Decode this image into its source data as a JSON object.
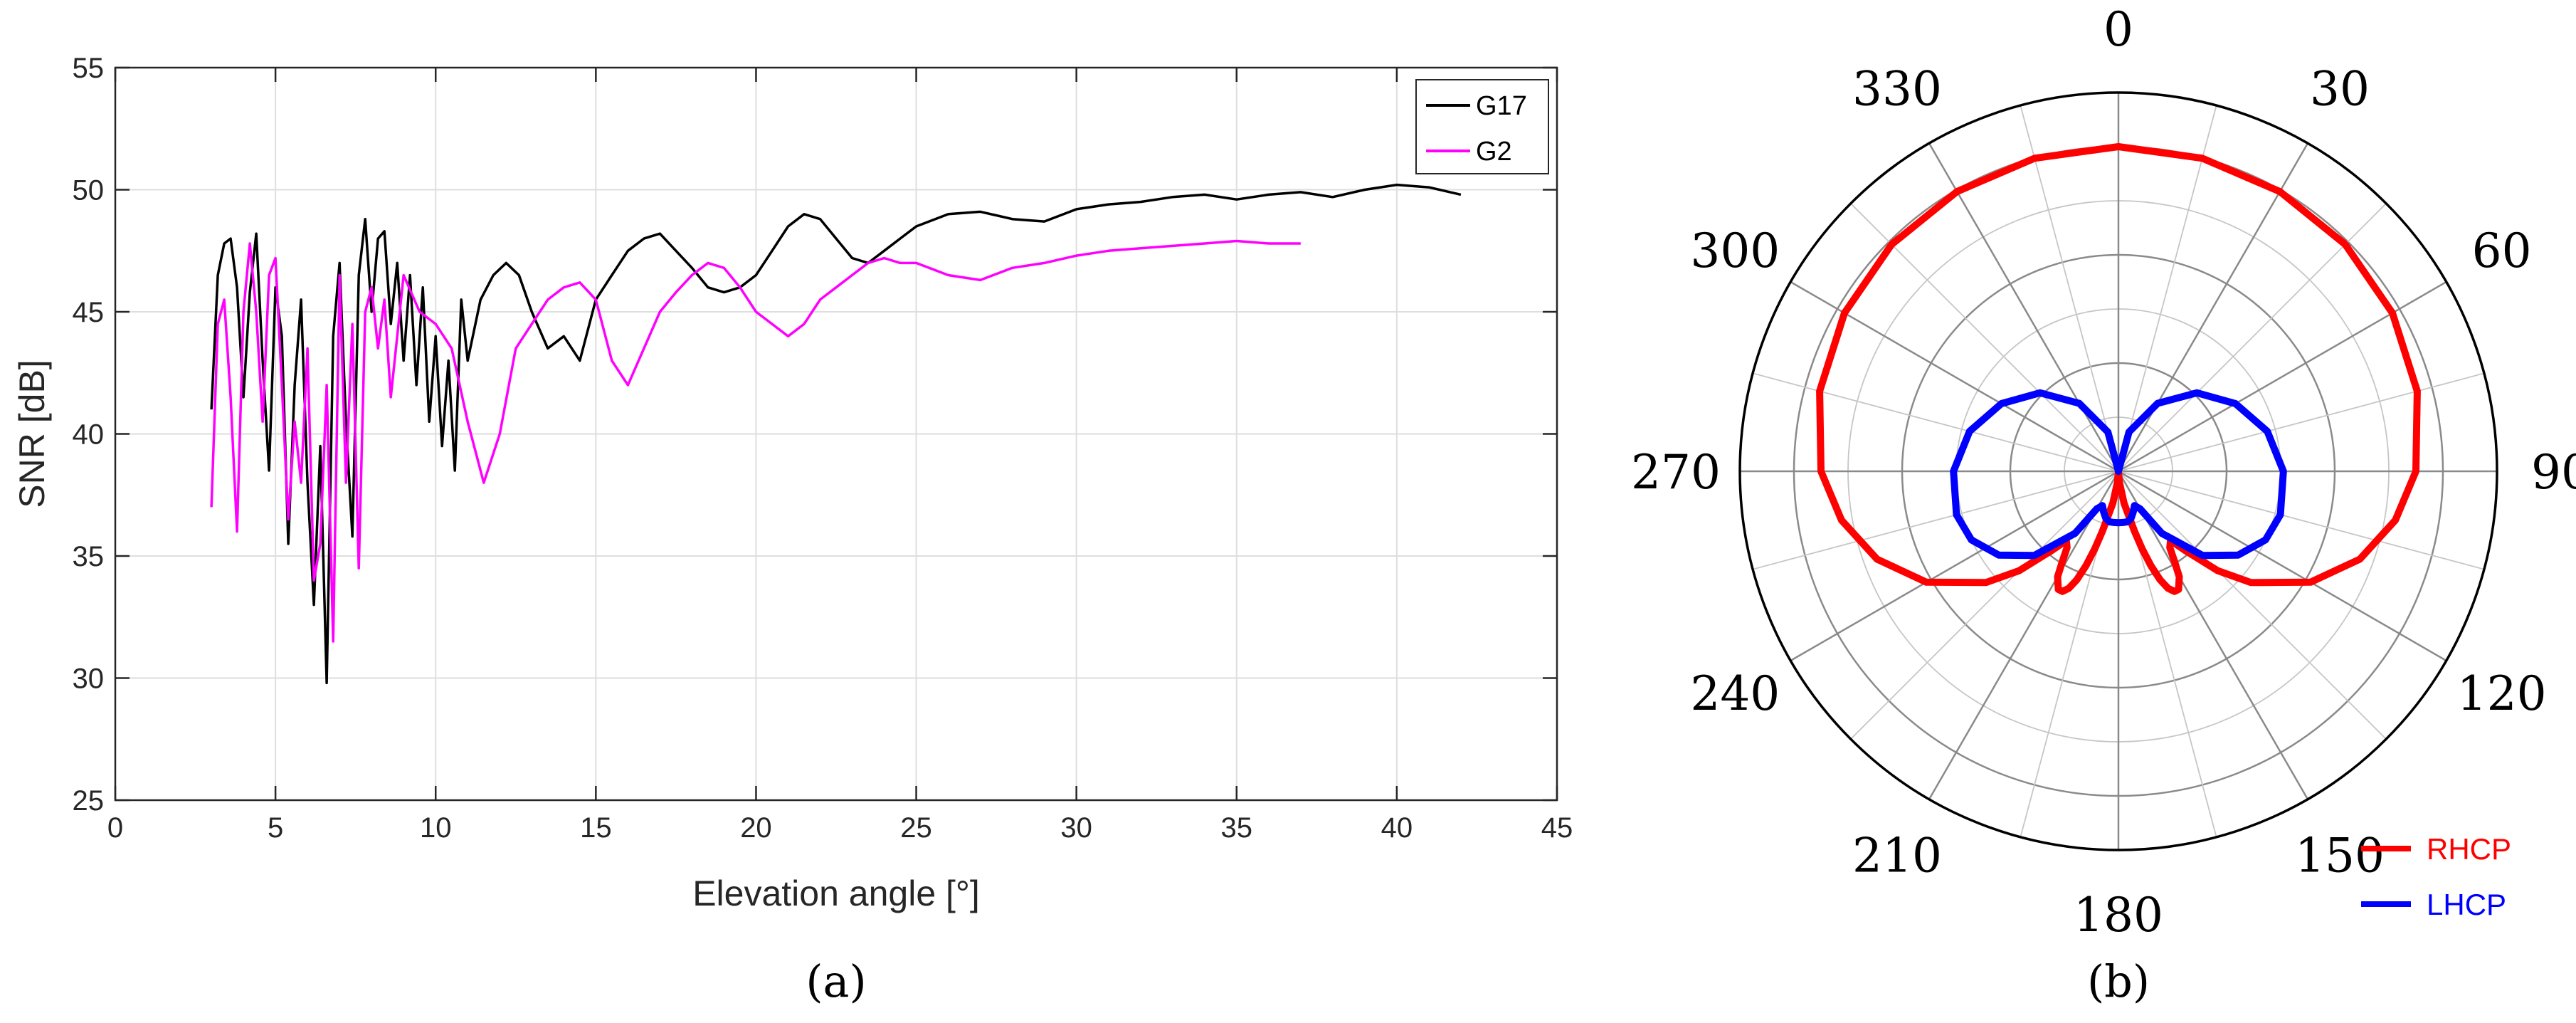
{
  "chart_data": [
    {
      "type": "line",
      "caption": "(a)",
      "xlabel": "Elevation angle [°]",
      "ylabel": "SNR [dB]",
      "xlim": [
        0,
        45
      ],
      "ylim": [
        25,
        55
      ],
      "xticks": [
        0,
        5,
        10,
        15,
        20,
        25,
        30,
        35,
        40,
        45
      ],
      "yticks": [
        25,
        30,
        35,
        40,
        45,
        50,
        55
      ],
      "grid": true,
      "legend_position": "top-right",
      "series": [
        {
          "name": "G17",
          "color": "#000000",
          "x": [
            3.0,
            3.2,
            3.4,
            3.6,
            3.8,
            4.0,
            4.2,
            4.4,
            4.6,
            4.8,
            5.0,
            5.2,
            5.4,
            5.6,
            5.8,
            6.0,
            6.2,
            6.4,
            6.6,
            6.8,
            7.0,
            7.2,
            7.4,
            7.6,
            7.8,
            8.0,
            8.2,
            8.4,
            8.6,
            8.8,
            9.0,
            9.2,
            9.4,
            9.6,
            9.8,
            10.0,
            10.2,
            10.4,
            10.6,
            10.8,
            11.0,
            11.4,
            11.8,
            12.2,
            12.6,
            13.0,
            13.5,
            14.0,
            14.5,
            15.0,
            15.5,
            16.0,
            16.5,
            17.0,
            17.5,
            18.0,
            18.5,
            19.0,
            19.5,
            20.0,
            20.5,
            21.0,
            21.5,
            22.0,
            22.5,
            23.0,
            23.5,
            24.0,
            24.5,
            25.0,
            26.0,
            27.0,
            28.0,
            29.0,
            30.0,
            31.0,
            32.0,
            33.0,
            34.0,
            35.0,
            36.0,
            37.0,
            38.0,
            39.0,
            40.0,
            41.0,
            42.0
          ],
          "y": [
            41.0,
            46.5,
            47.8,
            48.0,
            46.0,
            41.5,
            45.8,
            48.2,
            43.0,
            38.5,
            46.0,
            44.0,
            35.5,
            42.0,
            45.5,
            38.0,
            33.0,
            39.5,
            29.8,
            44.0,
            47.0,
            40.5,
            35.8,
            46.5,
            48.8,
            45.0,
            48.0,
            48.3,
            44.5,
            47.0,
            43.0,
            46.5,
            42.0,
            46.0,
            40.5,
            44.0,
            39.5,
            43.0,
            38.5,
            45.5,
            43.0,
            45.5,
            46.5,
            47.0,
            46.5,
            45.0,
            43.5,
            44.0,
            43.0,
            45.5,
            46.5,
            47.5,
            48.0,
            48.2,
            47.5,
            46.8,
            46.0,
            45.8,
            46.0,
            46.5,
            47.5,
            48.5,
            49.0,
            48.8,
            48.0,
            47.2,
            47.0,
            47.5,
            48.0,
            48.5,
            49.0,
            49.1,
            48.8,
            48.7,
            49.2,
            49.4,
            49.5,
            49.7,
            49.8,
            49.6,
            49.8,
            49.9,
            49.7,
            50.0,
            50.2,
            50.1,
            49.8
          ]
        },
        {
          "name": "G2",
          "color": "#ff00ff",
          "x": [
            3.0,
            3.2,
            3.4,
            3.6,
            3.8,
            4.0,
            4.2,
            4.4,
            4.6,
            4.8,
            5.0,
            5.2,
            5.4,
            5.6,
            5.8,
            6.0,
            6.2,
            6.4,
            6.6,
            6.8,
            7.0,
            7.2,
            7.4,
            7.6,
            7.8,
            8.0,
            8.2,
            8.4,
            8.6,
            8.8,
            9.0,
            9.5,
            10.0,
            10.5,
            11.0,
            11.5,
            12.0,
            12.5,
            13.0,
            13.5,
            14.0,
            14.5,
            15.0,
            15.5,
            16.0,
            16.5,
            17.0,
            17.5,
            18.0,
            18.5,
            19.0,
            19.5,
            20.0,
            20.5,
            21.0,
            21.5,
            22.0,
            22.5,
            23.0,
            23.5,
            24.0,
            24.5,
            25.0,
            26.0,
            27.0,
            28.0,
            29.0,
            30.0,
            31.0,
            32.0,
            33.0,
            34.0,
            35.0,
            36.0,
            37.0
          ],
          "y": [
            37.0,
            44.5,
            45.5,
            41.5,
            36.0,
            45.0,
            47.8,
            45.0,
            40.5,
            46.5,
            47.2,
            42.0,
            36.5,
            40.5,
            38.0,
            43.5,
            34.0,
            35.5,
            42.0,
            31.5,
            46.5,
            38.0,
            44.5,
            34.5,
            45.0,
            46.0,
            43.5,
            45.5,
            41.5,
            44.0,
            46.5,
            45.0,
            44.5,
            43.5,
            40.5,
            38.0,
            40.0,
            43.5,
            44.5,
            45.5,
            46.0,
            46.2,
            45.5,
            43.0,
            42.0,
            43.5,
            45.0,
            45.8,
            46.5,
            47.0,
            46.8,
            46.0,
            45.0,
            44.5,
            44.0,
            44.5,
            45.5,
            46.0,
            46.5,
            47.0,
            47.2,
            47.0,
            47.0,
            46.5,
            46.3,
            46.8,
            47.0,
            47.3,
            47.5,
            47.6,
            47.7,
            47.8,
            47.9,
            47.8,
            47.8
          ]
        }
      ]
    },
    {
      "type": "polar",
      "caption": "(b)",
      "angle_labels": [
        "0",
        "30",
        "60",
        "90",
        "120",
        "150",
        "180",
        "210",
        "240",
        "270",
        "300",
        "330"
      ],
      "rings": 7,
      "series": [
        {
          "name": "RHCP",
          "color": "#ff0000",
          "theta": [
            0,
            15,
            30,
            45,
            60,
            75,
            90,
            100,
            110,
            120,
            130,
            135,
            140,
            143,
            146,
            148,
            150,
            153,
            155,
            157,
            159,
            161,
            163,
            165,
            170,
            175,
            180,
            185,
            190,
            195,
            197,
            199,
            201,
            203,
            205,
            207,
            210,
            212,
            214,
            217,
            220,
            225,
            230,
            240,
            250,
            260,
            270,
            285,
            300,
            315,
            330,
            345,
            360
          ],
          "r": [
            6.0,
            5.99,
            5.97,
            5.93,
            5.85,
            5.72,
            5.5,
            5.2,
            4.75,
            4.1,
            3.2,
            2.6,
            1.9,
            1.6,
            1.7,
            1.95,
            2.25,
            2.45,
            2.45,
            2.35,
            2.15,
            1.85,
            1.5,
            1.15,
            0.6,
            0.2,
            0.0,
            0.2,
            0.6,
            1.15,
            1.5,
            1.85,
            2.15,
            2.35,
            2.45,
            2.45,
            2.25,
            1.95,
            1.7,
            1.6,
            1.9,
            2.6,
            3.2,
            4.1,
            4.75,
            5.2,
            5.5,
            5.72,
            5.85,
            5.93,
            5.97,
            5.99,
            6.0
          ]
        },
        {
          "name": "LHCP",
          "color": "#0000ff",
          "theta": [
            0,
            15,
            30,
            45,
            60,
            75,
            90,
            105,
            115,
            125,
            135,
            145,
            150,
            155,
            160,
            165,
            170,
            175,
            180,
            185,
            190,
            195,
            200,
            205,
            210,
            215,
            225,
            235,
            245,
            255,
            270,
            285,
            300,
            315,
            330,
            345,
            360
          ],
          "r": [
            0.0,
            0.75,
            1.45,
            2.05,
            2.5,
            2.85,
            3.05,
            3.1,
            3.0,
            2.7,
            2.2,
            1.4,
            0.8,
            0.7,
            0.8,
            0.9,
            0.95,
            0.95,
            0.95,
            0.95,
            0.95,
            0.9,
            0.8,
            0.7,
            0.8,
            1.4,
            2.2,
            2.7,
            3.0,
            3.1,
            3.05,
            2.85,
            2.5,
            2.05,
            1.45,
            0.75,
            0.0
          ]
        }
      ]
    }
  ]
}
